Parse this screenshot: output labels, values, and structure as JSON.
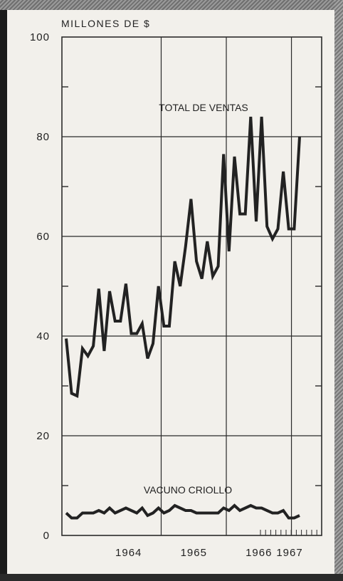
{
  "chart_data": {
    "type": "line",
    "ylabel": "MILLONES DE $",
    "ylim": [
      0,
      100
    ],
    "y_ticks": [
      "0",
      "20",
      "40",
      "60",
      "80",
      "100"
    ],
    "x_ticks": [
      "1964",
      "1965",
      "1966",
      "1967"
    ],
    "grid": true,
    "x_start": "1963-07",
    "series": [
      {
        "name": "TOTAL DE VENTAS",
        "color": "#222222",
        "values": [
          39.5,
          28.5,
          28,
          37.5,
          36,
          38,
          49.5,
          37,
          49,
          43,
          43,
          50.5,
          40.5,
          40.5,
          42.5,
          35.5,
          38.5,
          50,
          42,
          42,
          55,
          50,
          58,
          67.5,
          55,
          51.5,
          59,
          52,
          54,
          76.5,
          57,
          76,
          64.5,
          64.5,
          84,
          63,
          84,
          62,
          59.5,
          61.5,
          73,
          61.5,
          61.5,
          80
        ]
      },
      {
        "name": "VACUNO CRIOLLO",
        "color": "#222222",
        "values": [
          4.5,
          3.5,
          3.5,
          4.5,
          4.5,
          4.5,
          5,
          4.5,
          5.5,
          4.5,
          5,
          5.5,
          5,
          4.5,
          5.5,
          4,
          4.5,
          5.5,
          4.5,
          5,
          6,
          5.5,
          5,
          5,
          4.5,
          4.5,
          4.5,
          4.5,
          4.5,
          5.5,
          5,
          6,
          5,
          5.5,
          6,
          5.5,
          5.5,
          5,
          4.5,
          4.5,
          5,
          3.5,
          3.5,
          4
        ]
      }
    ]
  }
}
